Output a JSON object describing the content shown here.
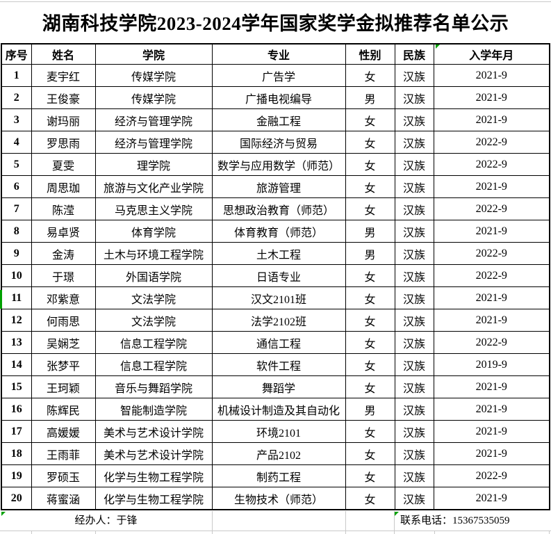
{
  "title": "湖南科技学院2023-2024学年国家奖学金拟推荐名单公示",
  "table": {
    "columns": [
      "序号",
      "姓名",
      "学院",
      "专业",
      "性别",
      "民族",
      "入学年月"
    ],
    "column_keys": [
      "index",
      "name",
      "college",
      "major",
      "gender",
      "ethnicity",
      "enrollment"
    ],
    "rows": [
      [
        "1",
        "麦宇红",
        "传媒学院",
        "广告学",
        "女",
        "汉族",
        "2021-9"
      ],
      [
        "2",
        "王俊豪",
        "传媒学院",
        "广播电视编导",
        "男",
        "汉族",
        "2021-9"
      ],
      [
        "3",
        "谢玛丽",
        "经济与管理学院",
        "金融工程",
        "女",
        "汉族",
        "2021-9"
      ],
      [
        "4",
        "罗思雨",
        "经济与管理学院",
        "国际经济与贸易",
        "女",
        "汉族",
        "2022-9"
      ],
      [
        "5",
        "夏雯",
        "理学院",
        "数学与应用数学（师范）",
        "女",
        "汉族",
        "2022-9"
      ],
      [
        "6",
        "周思珈",
        "旅游与文化产业学院",
        "旅游管理",
        "女",
        "汉族",
        "2021-9"
      ],
      [
        "7",
        "陈滢",
        "马克思主义学院",
        "思想政治教育（师范）",
        "女",
        "汉族",
        "2022-9"
      ],
      [
        "8",
        "易卓贤",
        "体育学院",
        "体育教育（师范）",
        "男",
        "汉族",
        "2021-9"
      ],
      [
        "9",
        "金涛",
        "土木与环境工程学院",
        "土木工程",
        "男",
        "汉族",
        "2022-9"
      ],
      [
        "10",
        "于璟",
        "外国语学院",
        "日语专业",
        "女",
        "汉族",
        "2022-9"
      ],
      [
        "11",
        "邓紫意",
        "文法学院",
        "汉文2101班",
        "女",
        "汉族",
        "2021-9"
      ],
      [
        "12",
        "何雨思",
        "文法学院",
        "法学2102班",
        "女",
        "汉族",
        "2021-9"
      ],
      [
        "13",
        "吴娴芝",
        "信息工程学院",
        "通信工程",
        "女",
        "汉族",
        "2022-9"
      ],
      [
        "14",
        "张梦平",
        "信息工程学院",
        "软件工程",
        "女",
        "汉族",
        "2019-9"
      ],
      [
        "15",
        "王珂颖",
        "音乐与舞蹈学院",
        "舞蹈学",
        "女",
        "汉族",
        "2021-9"
      ],
      [
        "16",
        "陈辉民",
        "智能制造学院",
        "机械设计制造及其自动化",
        "男",
        "汉族",
        "2021-9"
      ],
      [
        "17",
        "高媛媛",
        "美术与艺术设计学院",
        "环境2101",
        "女",
        "汉族",
        "2021-9"
      ],
      [
        "18",
        "王雨菲",
        "美术与艺术设计学院",
        "产品2102",
        "女",
        "汉族",
        "2021-9"
      ],
      [
        "19",
        "罗硕玉",
        "化学与生物工程学院",
        "制药工程",
        "女",
        "汉族",
        "2022-9"
      ],
      [
        "20",
        "蒋蜜涵",
        "化学与生物工程学院",
        "生物技术（师范）",
        "女",
        "汉族",
        "2021-9"
      ]
    ]
  },
  "footer": {
    "handler": "经办人：于锋",
    "contact": "联系电话：15367535059"
  },
  "colors": {
    "border": "#000000",
    "grid_light": "#c9c9c9",
    "error_indicator": "#00a000"
  }
}
